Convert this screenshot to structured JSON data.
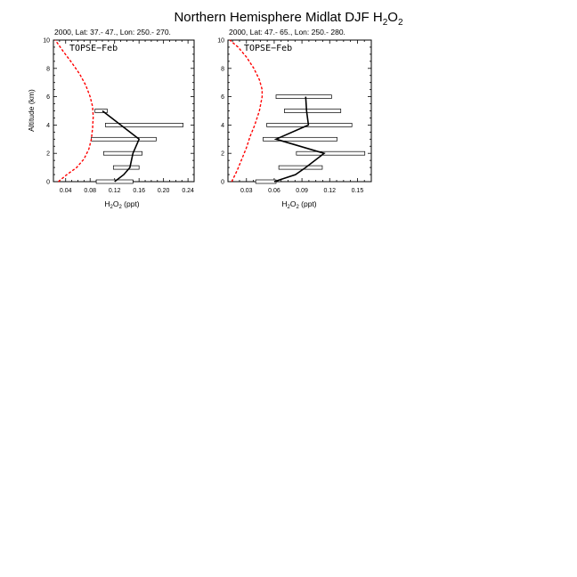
{
  "figure": {
    "title_main": "Northern Hemisphere Midlat DJF H",
    "title_sub1": "2",
    "title_mid": "O",
    "title_sub2": "2"
  },
  "chart_data": [
    {
      "type": "line",
      "subtitle": "2000, Lat: 37.- 47., Lon: 250.- 270.",
      "campaign_label": "TOPSE−Feb",
      "ylabel": "Altitude (km)",
      "xlabel_pre": "H",
      "xlabel_sub1": "2",
      "xlabel_mid": "O",
      "xlabel_sub2": "2",
      "xlabel_post": " (ppt)",
      "xlim": [
        0.02,
        0.25
      ],
      "ylim": [
        0,
        10
      ],
      "xticks": [
        0.04,
        0.08,
        0.12,
        0.16,
        0.2,
        0.24
      ],
      "xtick_labels": [
        "0.04",
        "0.08",
        "0.12",
        "0.16",
        "0.20",
        "0.24"
      ],
      "yticks": [
        0,
        2,
        4,
        6,
        8,
        10
      ],
      "ytick_labels": [
        "0",
        "2",
        "4",
        "6",
        "8",
        "10"
      ],
      "model": {
        "color": "#ff0000",
        "x": [
          0.028,
          0.042,
          0.058,
          0.07,
          0.078,
          0.082,
          0.084,
          0.085,
          0.084,
          0.08,
          0.073,
          0.063,
          0.05,
          0.036,
          0.023
        ],
        "y": [
          0,
          0.5,
          1,
          1.6,
          2.3,
          3,
          3.8,
          4.6,
          5.3,
          6,
          6.8,
          7.6,
          8.4,
          9.2,
          10
        ]
      },
      "observed": {
        "color": "#000000",
        "x": [
          0.12,
          0.135,
          0.145,
          0.15,
          0.16,
          0.16,
          0.1
        ],
        "y": [
          0,
          0.5,
          1,
          2,
          3,
          3,
          5
        ]
      },
      "ranges": [
        {
          "y": 5.0,
          "xmin": 0.088,
          "xmax": 0.108
        },
        {
          "y": 4.0,
          "xmin": 0.105,
          "xmax": 0.232
        },
        {
          "y": 3.0,
          "xmin": 0.082,
          "xmax": 0.188
        },
        {
          "y": 2.0,
          "xmin": 0.102,
          "xmax": 0.165
        },
        {
          "y": 1.0,
          "xmin": 0.118,
          "xmax": 0.16
        },
        {
          "y": 0.0,
          "xmin": 0.09,
          "xmax": 0.15
        }
      ]
    },
    {
      "type": "line",
      "subtitle": "2000, Lat: 47.- 65., Lon: 250.- 280.",
      "campaign_label": "TOPSE−Feb",
      "ylabel": "",
      "xlabel_pre": "H",
      "xlabel_sub1": "2",
      "xlabel_mid": "O",
      "xlabel_sub2": "2",
      "xlabel_post": " (ppt)",
      "xlim": [
        0.01,
        0.165
      ],
      "ylim": [
        0,
        10
      ],
      "xticks": [
        0.03,
        0.06,
        0.09,
        0.12,
        0.15
      ],
      "xtick_labels": [
        "0.03",
        "0.06",
        "0.09",
        "0.12",
        "0.15"
      ],
      "yticks": [
        0,
        2,
        4,
        6,
        8,
        10
      ],
      "ytick_labels": [
        "0",
        "2",
        "4",
        "6",
        "8",
        "10"
      ],
      "model": {
        "color": "#ff0000",
        "x": [
          0.014,
          0.02,
          0.025,
          0.03,
          0.034,
          0.039,
          0.044,
          0.047,
          0.047,
          0.044,
          0.038,
          0.03,
          0.021,
          0.012
        ],
        "y": [
          0,
          0.8,
          1.6,
          2.4,
          3.2,
          4.0,
          5.0,
          6.0,
          6.5,
          7.2,
          8.0,
          8.8,
          9.5,
          10
        ]
      },
      "observed": {
        "color": "#000000",
        "x": [
          0.06,
          0.083,
          0.094,
          0.114,
          0.062,
          0.097,
          0.095,
          0.094
        ],
        "y": [
          0,
          0.5,
          1,
          2,
          3,
          4,
          5,
          6
        ]
      },
      "ranges": [
        {
          "y": 6.0,
          "xmin": 0.062,
          "xmax": 0.122
        },
        {
          "y": 5.0,
          "xmin": 0.071,
          "xmax": 0.132
        },
        {
          "y": 4.0,
          "xmin": 0.052,
          "xmax": 0.144
        },
        {
          "y": 3.0,
          "xmin": 0.048,
          "xmax": 0.128
        },
        {
          "y": 2.0,
          "xmin": 0.084,
          "xmax": 0.158
        },
        {
          "y": 1.0,
          "xmin": 0.065,
          "xmax": 0.112
        },
        {
          "y": 0.0,
          "xmin": 0.04,
          "xmax": 0.062
        }
      ]
    }
  ]
}
